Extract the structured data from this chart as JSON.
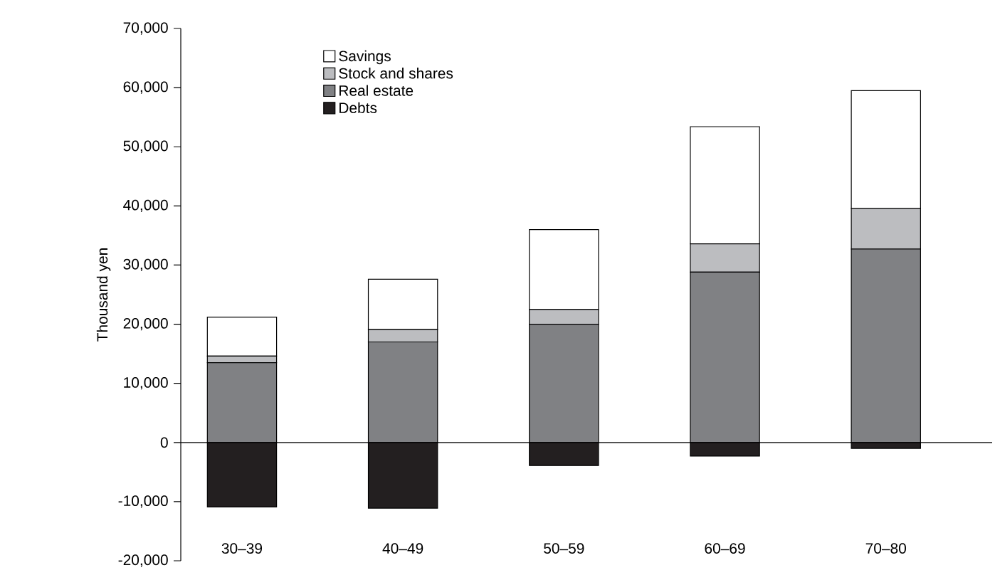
{
  "chart_data": {
    "type": "bar",
    "stacked": true,
    "ylabel": "Thousand yen",
    "categories": [
      "30–39",
      "40–49",
      "50–59",
      "60–69",
      "70–80"
    ],
    "series": [
      {
        "name": "Debts",
        "color": "#231f20",
        "values": [
          -10900,
          -11100,
          -3900,
          -2300,
          -1000
        ]
      },
      {
        "name": "Real estate",
        "color": "#808184",
        "values": [
          13500,
          17000,
          20000,
          28800,
          32700
        ]
      },
      {
        "name": "Stock and shares",
        "color": "#bcbdc0",
        "values": [
          1100,
          2100,
          2500,
          4800,
          6900
        ]
      },
      {
        "name": "Savings",
        "color": "#ffffff",
        "values": [
          6600,
          8500,
          13500,
          19800,
          19900
        ]
      }
    ],
    "ylim": [
      -20000,
      70000
    ],
    "yticks": [
      {
        "value": -20000,
        "label": "-20,000"
      },
      {
        "value": -10000,
        "label": "-10,000"
      },
      {
        "value": 0,
        "label": "0"
      },
      {
        "value": 10000,
        "label": "10,000"
      },
      {
        "value": 20000,
        "label": "20,000"
      },
      {
        "value": 30000,
        "label": "30,000"
      },
      {
        "value": 40000,
        "label": "40,000"
      },
      {
        "value": 50000,
        "label": "50,000"
      },
      {
        "value": 60000,
        "label": "60,000"
      },
      {
        "value": 70000,
        "label": "70,000"
      }
    ],
    "legend": "top left"
  }
}
